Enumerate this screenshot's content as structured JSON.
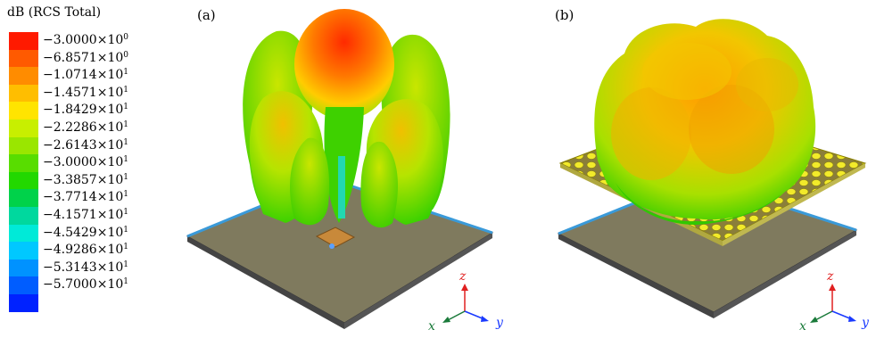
{
  "legend": {
    "title": "dB (RCS Total)",
    "colors": [
      "#ff1a00",
      "#ff5a00",
      "#ff8c00",
      "#ffbe00",
      "#ffe400",
      "#c8ef00",
      "#9ae600",
      "#58dd00",
      "#22d800",
      "#00d24a",
      "#00d89e",
      "#00ead8",
      "#00c8ff",
      "#0092ff",
      "#005dff",
      "#0022ff"
    ],
    "ticks": [
      {
        "m": "−3.0000×10",
        "e": "0"
      },
      {
        "m": "−6.8571×10",
        "e": "0"
      },
      {
        "m": "−1.0714×10",
        "e": "1"
      },
      {
        "m": "−1.4571×10",
        "e": "1"
      },
      {
        "m": "−1.8429×10",
        "e": "1"
      },
      {
        "m": "−2.2286×10",
        "e": "1"
      },
      {
        "m": "−2.6143×10",
        "e": "1"
      },
      {
        "m": "−3.0000×10",
        "e": "1"
      },
      {
        "m": "−3.3857×10",
        "e": "1"
      },
      {
        "m": "−3.7714×10",
        "e": "1"
      },
      {
        "m": "−4.1571×10",
        "e": "1"
      },
      {
        "m": "−4.5429×10",
        "e": "1"
      },
      {
        "m": "−4.9286×10",
        "e": "1"
      },
      {
        "m": "−5.3143×10",
        "e": "1"
      },
      {
        "m": "−5.7000×10",
        "e": "1"
      }
    ]
  },
  "panels": [
    {
      "label": "(a)",
      "axes": {
        "z": "z",
        "x": "x",
        "y": "y"
      }
    },
    {
      "label": "(b)",
      "axes": {
        "z": "z",
        "x": "x",
        "y": "y"
      }
    }
  ]
}
